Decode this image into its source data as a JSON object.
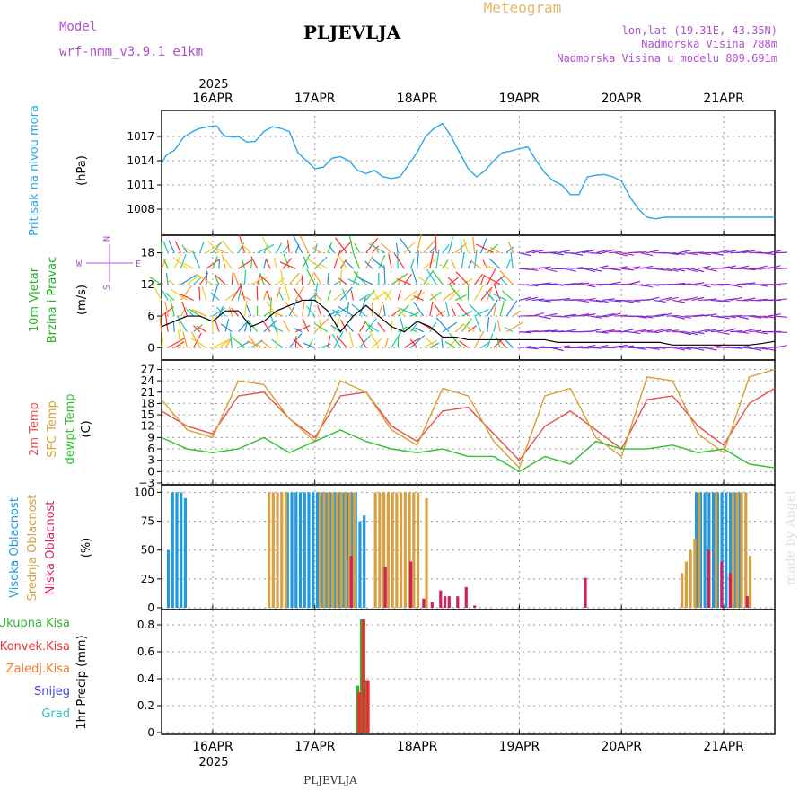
{
  "header": {
    "model_label": "Model",
    "model_name": "wrf-nmm_v3.9.1  e1km",
    "station": "PLJEVLJA",
    "meteogram": "Meteogram",
    "lonlat": "lon,lat (19.31E, 43.35N)",
    "altitude": "Nadmorska Visina 788m",
    "model_altitude": "Nadmorska Visina u modelu 809.691m"
  },
  "footer": {
    "station": "PLJEVLJA",
    "credit": "made by Angel"
  },
  "colors": {
    "pressure": "#2aa7e8",
    "temp2m": "#e8504a",
    "sfc": "#d9a030",
    "dewpt": "#30c030",
    "high_cloud": "#1e9be0",
    "mid_cloud": "#d8a040",
    "low_cloud": "#d02060",
    "wind_label": "#20b020",
    "axis_purple": "#b050d0",
    "total_precip": "#30b030",
    "convective": "#e83030",
    "frozen": "#f08030",
    "snow": "#4040e0",
    "graupel": "#30c0c0"
  },
  "chart_data": {
    "type": "meteogram",
    "time_axis": {
      "start": "2025-04-15T12:00",
      "end": "2025-04-21T12:00",
      "top_year": "2025",
      "bottom_year": "2025",
      "tick_labels": [
        "16APR",
        "17APR",
        "18APR",
        "19APR",
        "20APR",
        "21APR"
      ],
      "tick_hours": [
        12,
        36,
        60,
        84,
        108,
        132
      ]
    },
    "panels": [
      {
        "id": "pressure",
        "type": "line",
        "ylabel": "Pritisak na nivou mora",
        "unit": "(hPa)",
        "ylim": [
          1005,
          1020
        ],
        "yticks": [
          1008,
          1011,
          1014,
          1017
        ],
        "series": [
          {
            "hours": [
              0,
              1,
              2,
              3,
              4,
              5,
              6,
              7,
              8,
              9,
              10,
              11,
              12,
              13,
              14,
              15,
              16,
              17,
              18,
              20,
              22,
              24,
              26,
              28,
              30,
              32,
              34,
              36,
              38,
              40,
              42,
              44,
              46,
              48,
              50,
              52,
              54,
              56,
              58,
              60,
              62,
              64,
              66,
              68,
              70,
              72,
              74,
              76,
              78,
              80,
              82,
              84,
              86,
              88,
              90,
              92,
              94,
              96,
              98,
              100,
              102,
              104,
              106,
              108,
              110,
              112,
              114,
              116,
              118,
              120,
              122,
              124,
              126,
              128,
              130,
              132,
              134,
              136,
              138,
              140,
              142,
              144
            ],
            "values": [
              1013.6,
              1014.6,
              1015.0,
              1015.3,
              1016.0,
              1016.8,
              1017.2,
              1017.5,
              1017.8,
              1018.0,
              1018.1,
              1018.2,
              1018.3,
              1018.3,
              1017.5,
              1017.0,
              1017.0,
              1016.9,
              1017.0,
              1016.3,
              1016.4,
              1017.6,
              1018.2,
              1018.0,
              1017.6,
              1015.0,
              1014.0,
              1013.0,
              1013.2,
              1014.3,
              1014.5,
              1014.0,
              1012.8,
              1012.4,
              1012.8,
              1012.0,
              1011.8,
              1012.0,
              1013.5,
              1015.0,
              1017.0,
              1018.0,
              1018.6,
              1017.0,
              1015.0,
              1013.0,
              1012.0,
              1012.8,
              1014.0,
              1015.0,
              1015.2,
              1015.5,
              1015.7,
              1014.0,
              1012.5,
              1011.5,
              1011.0,
              1009.8,
              1009.8,
              1012.0,
              1012.2,
              1012.3,
              1012.0,
              1011.5,
              1009.5,
              1008.0,
              1007.0,
              1006.8,
              1007.0,
              1007.0,
              1007.0,
              1007.0,
              1007.0,
              1007.0,
              1007.0,
              1007.0,
              1007.0,
              1007.0,
              1007.0,
              1007.0,
              1007.0,
              1007.0
            ],
            "color_key": "pressure"
          }
        ]
      },
      {
        "id": "wind",
        "type": "line+arrows",
        "ylabel": "10m Vjetar",
        "ylabel2": "Brzina i Pravac",
        "unit": "(m/s)",
        "compass": {
          "n": "N",
          "s": "S",
          "w": "W",
          "e": "E"
        },
        "ylim": [
          -2,
          21
        ],
        "yticks": [
          0,
          6,
          12,
          18
        ],
        "series": [
          {
            "name": "speed",
            "hours": [
              0,
              3,
              6,
              9,
              12,
              15,
              18,
              21,
              24,
              27,
              30,
              33,
              36,
              39,
              42,
              45,
              48,
              51,
              54,
              57,
              60,
              63,
              66,
              69,
              72,
              75,
              78,
              81,
              84,
              87,
              90,
              93,
              96,
              99,
              102,
              105,
              108,
              111,
              114,
              117,
              120,
              123,
              126,
              129,
              132,
              135,
              138,
              141,
              144
            ],
            "values": [
              4,
              5,
              6,
              6,
              5,
              7,
              7,
              4,
              5,
              7,
              8,
              9,
              9,
              7,
              3,
              6,
              8,
              6,
              4,
              3,
              5,
              4,
              2,
              2,
              1.5,
              1.5,
              1.5,
              1.5,
              1.5,
              1.5,
              1.5,
              1,
              1,
              1,
              1,
              1,
              1,
              1,
              1,
              1,
              0.5,
              0.5,
              0.5,
              0.5,
              0.5,
              0.5,
              0.5,
              0.8,
              1.2
            ]
          }
        ]
      },
      {
        "id": "temperature",
        "type": "line",
        "ylabel": "2m Temp",
        "ylabel2": "SFC Temp",
        "ylabel3": "dewpt Temp",
        "unit": "(C)",
        "ylim": [
          -3,
          29
        ],
        "yticks": [
          -3,
          0,
          3,
          6,
          9,
          12,
          15,
          18,
          21,
          24,
          27
        ],
        "series": [
          {
            "name": "2m Temp",
            "color_key": "temp2m",
            "hours": [
              0,
              6,
              12,
              18,
              24,
              30,
              36,
              42,
              48,
              54,
              60,
              66,
              72,
              78,
              84,
              90,
              96,
              102,
              108,
              114,
              120,
              126,
              132,
              138,
              144
            ],
            "values": [
              16,
              12,
              10,
              20,
              21,
              14,
              9,
              20,
              21,
              12,
              8,
              16,
              17,
              10,
              3,
              12,
              16,
              11,
              6,
              19,
              20,
              12,
              7,
              18,
              22
            ]
          },
          {
            "name": "SFC Temp",
            "color_key": "sfc",
            "hours": [
              0,
              6,
              12,
              18,
              24,
              30,
              36,
              42,
              48,
              54,
              60,
              66,
              72,
              78,
              84,
              90,
              96,
              102,
              108,
              114,
              120,
              126,
              132,
              138,
              144
            ],
            "values": [
              19,
              11,
              9,
              24,
              23,
              14,
              8,
              24,
              21,
              11,
              7,
              22,
              20,
              8,
              1,
              20,
              22,
              9,
              4,
              25,
              24,
              10,
              5,
              25,
              27
            ]
          },
          {
            "name": "dewpt Temp",
            "color_key": "dewpt",
            "hours": [
              0,
              6,
              12,
              18,
              24,
              30,
              36,
              42,
              48,
              54,
              60,
              66,
              72,
              78,
              84,
              90,
              96,
              102,
              108,
              114,
              120,
              126,
              132,
              138,
              144
            ],
            "values": [
              9,
              6,
              5,
              6,
              9,
              5,
              8,
              11,
              8,
              6,
              5,
              6,
              4,
              4,
              0,
              4,
              2,
              8,
              6,
              6,
              7,
              5,
              6,
              2,
              1
            ]
          }
        ]
      },
      {
        "id": "clouds",
        "type": "bar",
        "ylabel": "Visoka Oblacnost",
        "ylabel2": "Srednja Oblacnost",
        "ylabel3": "Niska Oblacnost",
        "unit": "(%)",
        "ylim": [
          0,
          105
        ],
        "yticks": [
          0,
          25,
          50,
          75,
          100
        ],
        "series": [
          {
            "name": "Visoka Oblacnost",
            "color_key": "high_cloud",
            "hours": [
              2,
              3,
              4,
              5,
              6,
              30,
              31,
              32,
              33,
              34,
              35,
              36,
              37,
              38,
              39,
              40,
              41,
              42,
              43,
              44,
              45,
              46,
              47,
              48,
              126,
              127,
              128,
              129,
              130,
              131,
              132,
              133,
              134,
              135,
              136
            ],
            "values": [
              50,
              100,
              100,
              100,
              95,
              100,
              100,
              100,
              100,
              100,
              100,
              100,
              100,
              100,
              100,
              100,
              100,
              100,
              100,
              100,
              100,
              100,
              75,
              80,
              100,
              100,
              100,
              100,
              100,
              100,
              100,
              100,
              100,
              100,
              100
            ]
          },
          {
            "name": "Srednja Oblacnost",
            "color_key": "mid_cloud",
            "hours": [
              25,
              26,
              27,
              28,
              29,
              37,
              38,
              39,
              40,
              41,
              42,
              43,
              44,
              45,
              50,
              51,
              52,
              53,
              54,
              55,
              56,
              57,
              58,
              59,
              60,
              62,
              122,
              123,
              124,
              125,
              126,
              130,
              134,
              135,
              136,
              137,
              138
            ],
            "values": [
              100,
              100,
              100,
              100,
              100,
              100,
              100,
              100,
              100,
              100,
              100,
              100,
              100,
              100,
              100,
              100,
              100,
              100,
              100,
              100,
              100,
              100,
              100,
              100,
              100,
              95,
              30,
              40,
              50,
              60,
              100,
              100,
              100,
              100,
              100,
              100,
              45
            ]
          },
          {
            "name": "Niska Oblacnost",
            "color_key": "low_cloud",
            "hours": [
              44,
              52,
              58,
              61,
              63,
              65,
              66,
              67,
              69,
              71,
              73,
              99,
              128,
              131,
              133,
              137
            ],
            "values": [
              45,
              35,
              40,
              8,
              5,
              15,
              10,
              10,
              10,
              18,
              2,
              26,
              50,
              40,
              30,
              10
            ]
          }
        ]
      },
      {
        "id": "precip",
        "type": "bar",
        "ylabel": "1hr Precip (mm)",
        "legend": [
          "Ukupna Kisa",
          "Konvek.Kisa",
          "Zaledj.Kisa",
          "Snijeg",
          "Grad"
        ],
        "ylim": [
          0,
          0.9
        ],
        "yticks": [
          0,
          0.2,
          0.4,
          0.6,
          0.8
        ],
        "series": [
          {
            "name": "Ukupna Kisa",
            "color_key": "total_precip",
            "hours": [
              46,
              47,
              48
            ],
            "values": [
              0.35,
              0.84,
              0.39
            ]
          },
          {
            "name": "Konvek.Kisa",
            "color_key": "convective",
            "hours": [
              46,
              47,
              48
            ],
            "values": [
              0.3,
              0.84,
              0.39
            ]
          }
        ]
      }
    ]
  }
}
